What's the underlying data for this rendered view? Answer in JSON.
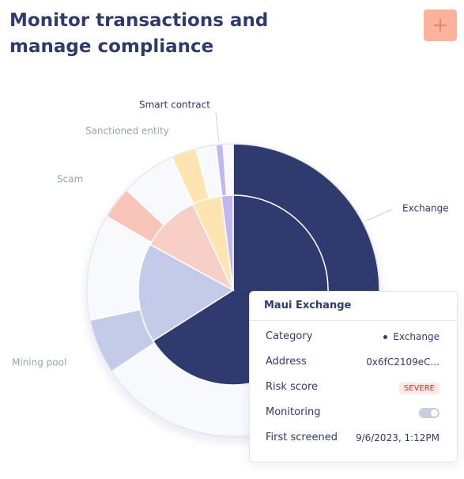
{
  "header": {
    "title": "Monitor transactions and manage compliance"
  },
  "chart_data": {
    "type": "sunburst",
    "categories": [
      "Exchange",
      "Mining pool",
      "Scam",
      "Sanctioned entity",
      "Smart contract"
    ],
    "inner": {
      "values": [
        66,
        17,
        10,
        5,
        2
      ],
      "colors": [
        "#2f3a6e",
        "#c3cbe8",
        "#f8cfc6",
        "#fde4b0",
        "#c2b5f1"
      ]
    },
    "outer": {
      "values": [
        26.4,
        39.2,
        6.1,
        11.7,
        3.6,
        6.1,
        2.8,
        2.2,
        0.8,
        1.1
      ],
      "colors": [
        "#2f3a6e",
        "#f8f9fd",
        "#c3cbe8",
        "#f8f9fd",
        "#f9c4b8",
        "#f8f9fd",
        "#fde4b0",
        "#f8f9fd",
        "#c2b5f1",
        "#f8f9fd"
      ]
    }
  },
  "tooltip": {
    "title": "Maui Exchange",
    "rows": [
      {
        "label": "Category",
        "value": "Exchange"
      },
      {
        "label": "Address",
        "value": "0x6fC2109eC..."
      },
      {
        "label": "Risk score",
        "value": "SEVERE"
      },
      {
        "label": "Monitoring"
      },
      {
        "label": "First screened",
        "value": "9/6/2023, 1:12PM"
      }
    ]
  }
}
